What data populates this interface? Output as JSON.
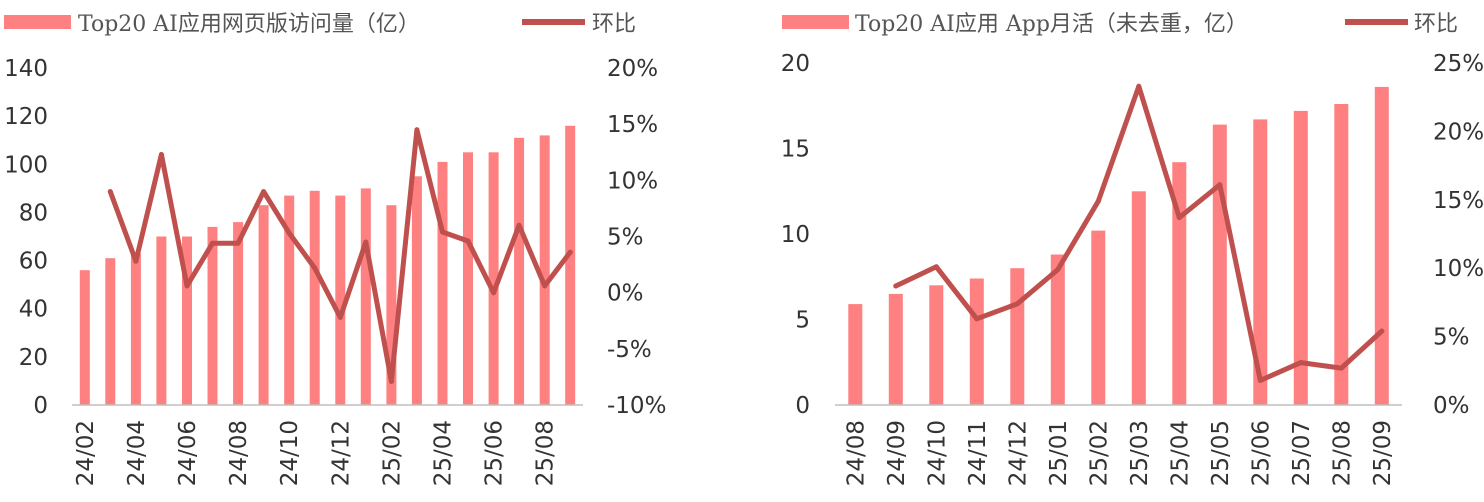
{
  "colors": {
    "bar": "#ff8080",
    "line": "#c0504d",
    "text": "#333333",
    "axis": "#bfbfbf"
  },
  "chart_data": [
    {
      "type": "bar",
      "legend": {
        "bar": "Top20 AI应用网页版访问量（亿）",
        "line": "环比",
        "position": "top"
      },
      "categories": [
        "24/02",
        "24/03",
        "24/04",
        "24/05",
        "24/06",
        "24/07",
        "24/08",
        "24/09",
        "24/10",
        "24/11",
        "24/12",
        "25/01",
        "25/02",
        "25/03",
        "25/04",
        "25/05",
        "25/06",
        "25/07",
        "25/08",
        "25/09"
      ],
      "tick_labels": [
        "24/02",
        "",
        "24/04",
        "",
        "24/06",
        "",
        "24/08",
        "",
        "24/10",
        "",
        "24/12",
        "",
        "25/02",
        "",
        "25/04",
        "",
        "25/06",
        "",
        "25/08",
        ""
      ],
      "series": [
        {
          "name": "Top20 AI应用网页版访问量（亿）",
          "type": "bar",
          "axis": "left",
          "values": [
            56,
            61,
            63,
            70,
            70,
            74,
            76,
            83,
            87,
            89,
            87,
            90,
            83,
            95,
            101,
            105,
            105,
            111,
            112,
            116
          ]
        },
        {
          "name": "环比",
          "type": "line",
          "axis": "right",
          "values": [
            null,
            9.0,
            2.8,
            12.3,
            0.6,
            4.4,
            4.4,
            9.0,
            5.3,
            2.2,
            -2.2,
            4.5,
            -7.9,
            14.5,
            5.4,
            4.6,
            0.0,
            6.0,
            0.6,
            3.6
          ]
        }
      ],
      "ylim_left": [
        0,
        140
      ],
      "yticks_left": [
        "0",
        "20",
        "40",
        "60",
        "80",
        "100",
        "120",
        "140"
      ],
      "ylim_right": [
        -10,
        20
      ],
      "yticks_right": [
        "-10%",
        "-5%",
        "0%",
        "5%",
        "10%",
        "15%",
        "20%"
      ],
      "grid": false
    },
    {
      "type": "bar",
      "legend": {
        "bar": "Top20 AI应用 App月活（未去重，亿）",
        "line": "环比",
        "position": "top"
      },
      "categories": [
        "24/08",
        "24/09",
        "24/10",
        "24/11",
        "24/12",
        "25/01",
        "25/02",
        "25/03",
        "25/04",
        "25/05",
        "25/06",
        "25/07",
        "25/08",
        "25/09"
      ],
      "tick_labels": [
        "24/08",
        "24/09",
        "24/10",
        "24/11",
        "24/12",
        "25/01",
        "25/02",
        "25/03",
        "25/04",
        "25/05",
        "25/06",
        "25/07",
        "25/08",
        "25/09"
      ],
      "series": [
        {
          "name": "Top20 AI应用 App月活（未去重，亿）",
          "type": "bar",
          "axis": "left",
          "values": [
            5.9,
            6.5,
            7.0,
            7.4,
            8.0,
            8.8,
            10.2,
            12.5,
            14.2,
            16.4,
            16.7,
            17.2,
            17.6,
            18.6
          ]
        },
        {
          "name": "环比",
          "type": "line",
          "axis": "right",
          "values": [
            null,
            8.7,
            10.1,
            6.3,
            7.4,
            9.9,
            14.9,
            23.3,
            13.7,
            16.1,
            1.8,
            3.1,
            2.7,
            5.4
          ]
        }
      ],
      "ylim_left": [
        0,
        20
      ],
      "yticks_left": [
        "0",
        "5",
        "10",
        "15",
        "20"
      ],
      "ylim_right": [
        0,
        25
      ],
      "yticks_right": [
        "0%",
        "5%",
        "10%",
        "15%",
        "20%",
        "25%"
      ],
      "grid": false
    }
  ]
}
